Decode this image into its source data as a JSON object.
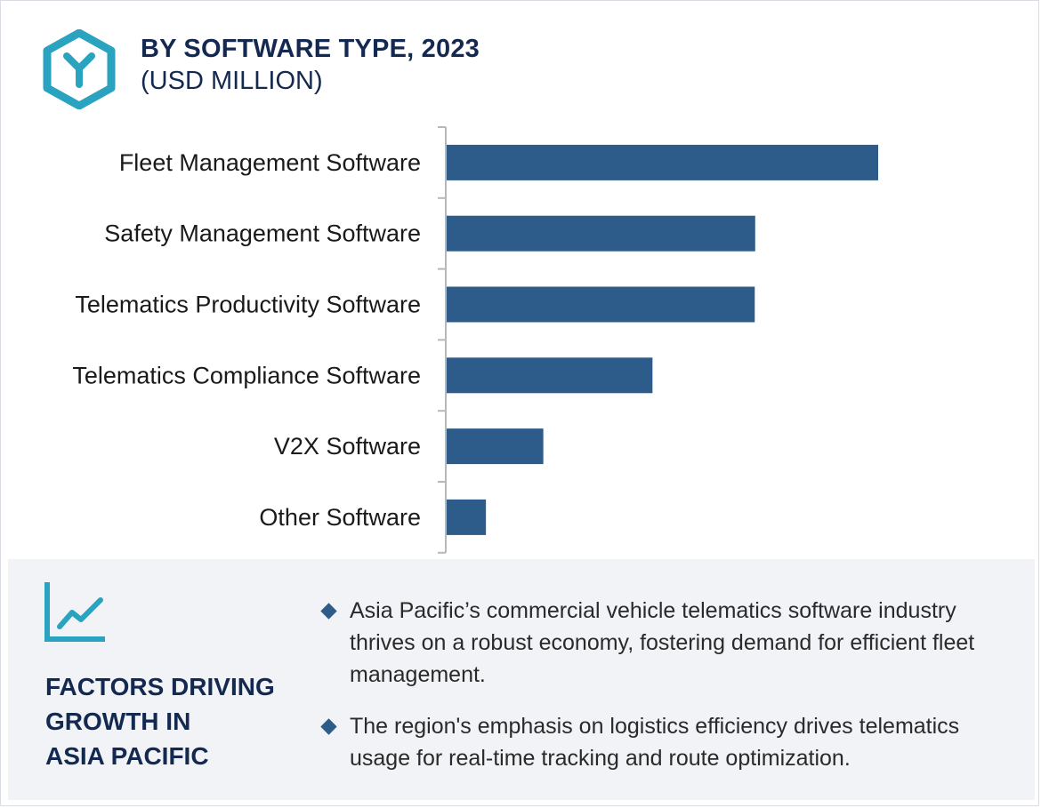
{
  "header": {
    "title": "BY SOFTWARE TYPE, 2023",
    "subtitle": "(USD MILLION)",
    "logo_icon": "hexagon-y-logo-icon"
  },
  "colors": {
    "bar": "#2d5b8a",
    "title": "#14294f",
    "accent": "#2aa3c0",
    "panel_bg": "#f1f3f7",
    "axis": "#b5b8bd"
  },
  "chart_data": {
    "type": "bar",
    "orientation": "horizontal",
    "title": "BY SOFTWARE TYPE, 2023",
    "subtitle": "(USD MILLION)",
    "categories": [
      "Fleet Management Software",
      "Safety Management Software",
      "Telematics Productivity Software",
      "Telematics Compliance Software",
      "V2X Software",
      "Other Software"
    ],
    "values": [
      100,
      71.5,
      71.4,
      47.7,
      22.4,
      9.1
    ],
    "xlim": [
      0,
      100
    ],
    "grid": false,
    "legend": "none",
    "value_axis_labels": "none"
  },
  "factors": {
    "icon": "trend-line-icon",
    "title_lines": [
      "FACTORS DRIVING",
      "GROWTH IN",
      "ASIA PACIFIC"
    ],
    "bullets": [
      "Asia Pacific’s commercial vehicle telematics software industry thrives on a robust economy, fostering demand for efficient fleet management.",
      "The region's emphasis on logistics efficiency drives telematics usage for real-time tracking and route optimization."
    ]
  }
}
